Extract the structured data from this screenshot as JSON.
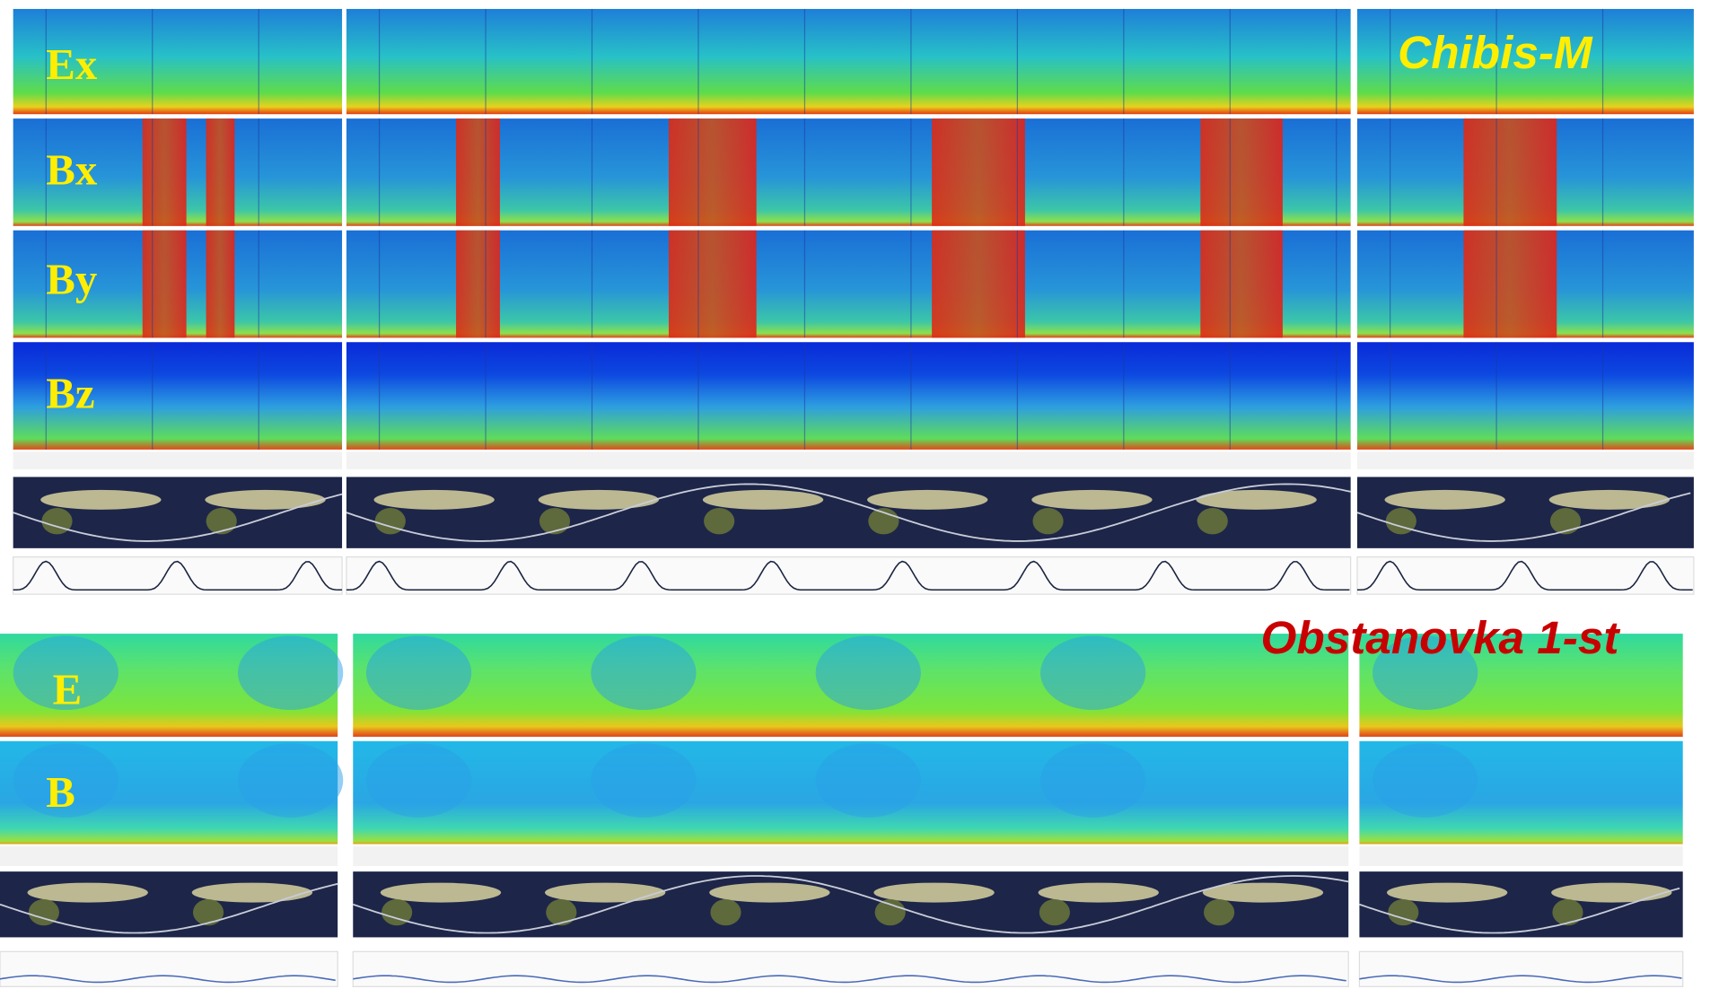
{
  "chibis": {
    "title": "Chibis-M",
    "channels": [
      "Ex",
      "Bx",
      "By",
      "Bz"
    ]
  },
  "obstanovka": {
    "title": "Obstanovka 1-st",
    "channels": [
      "E",
      "B"
    ]
  }
}
